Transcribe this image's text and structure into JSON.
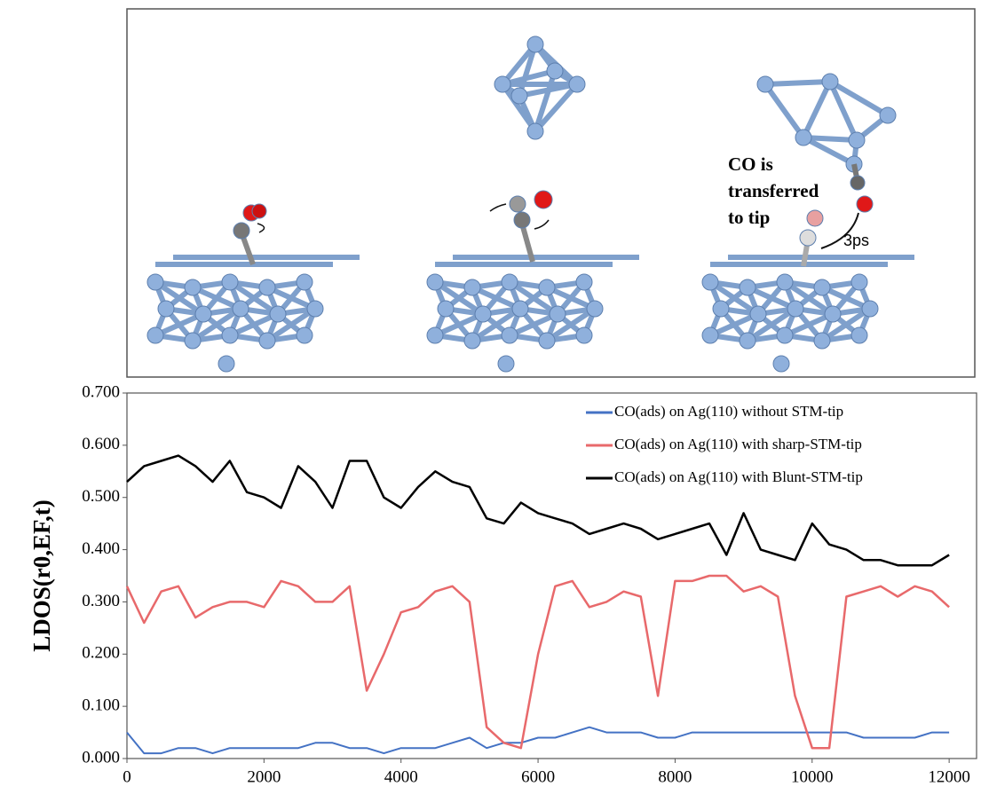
{
  "diagram": {
    "annotation_lines": [
      "CO is",
      "transferred",
      "to tip"
    ],
    "time_label": "3ps"
  },
  "chart_data": {
    "type": "line",
    "y_label": "LDOS(r0,EF,t)",
    "x": [
      0,
      250,
      500,
      750,
      1000,
      1250,
      1500,
      1750,
      2000,
      2250,
      2500,
      2750,
      3000,
      3250,
      3500,
      3750,
      4000,
      4250,
      4500,
      4750,
      5000,
      5250,
      5500,
      5750,
      6000,
      6250,
      6500,
      6750,
      7000,
      7250,
      7500,
      7750,
      8000,
      8250,
      8500,
      8750,
      9000,
      9250,
      9500,
      9750,
      10000,
      10250,
      10500,
      10750,
      11000,
      11250,
      11500,
      11750,
      12000
    ],
    "series": [
      {
        "name": "CO(ads) on Ag(110) without STM-tip",
        "color": "#4472c4",
        "values": [
          0.05,
          0.01,
          0.01,
          0.02,
          0.02,
          0.01,
          0.02,
          0.02,
          0.02,
          0.02,
          0.02,
          0.03,
          0.03,
          0.02,
          0.02,
          0.01,
          0.02,
          0.02,
          0.02,
          0.03,
          0.04,
          0.02,
          0.03,
          0.03,
          0.04,
          0.04,
          0.05,
          0.06,
          0.05,
          0.05,
          0.05,
          0.04,
          0.04,
          0.05,
          0.05,
          0.05,
          0.05,
          0.05,
          0.05,
          0.05,
          0.05,
          0.05,
          0.05,
          0.04,
          0.04,
          0.04,
          0.04,
          0.05,
          0.05
        ]
      },
      {
        "name": "CO(ads) on Ag(110) with sharp-STM-tip",
        "color": "#e8696b",
        "values": [
          0.33,
          0.26,
          0.32,
          0.33,
          0.27,
          0.29,
          0.3,
          0.3,
          0.29,
          0.34,
          0.33,
          0.3,
          0.3,
          0.33,
          0.13,
          0.2,
          0.28,
          0.29,
          0.32,
          0.33,
          0.3,
          0.06,
          0.03,
          0.02,
          0.2,
          0.33,
          0.34,
          0.29,
          0.3,
          0.32,
          0.31,
          0.12,
          0.34,
          0.34,
          0.35,
          0.35,
          0.32,
          0.33,
          0.31,
          0.12,
          0.02,
          0.02,
          0.31,
          0.32,
          0.33,
          0.31,
          0.33,
          0.32,
          0.29
        ]
      },
      {
        "name": "CO(ads) on Ag(110) with Blunt-STM-tip",
        "color": "#000000",
        "values": [
          0.53,
          0.56,
          0.57,
          0.58,
          0.56,
          0.53,
          0.57,
          0.51,
          0.5,
          0.48,
          0.56,
          0.53,
          0.48,
          0.57,
          0.57,
          0.5,
          0.48,
          0.52,
          0.55,
          0.53,
          0.52,
          0.46,
          0.45,
          0.49,
          0.47,
          0.46,
          0.45,
          0.43,
          0.44,
          0.45,
          0.44,
          0.42,
          0.43,
          0.44,
          0.45,
          0.39,
          0.47,
          0.4,
          0.39,
          0.38,
          0.45,
          0.41,
          0.4,
          0.38,
          0.38,
          0.37,
          0.37,
          0.37,
          0.39
        ]
      }
    ],
    "xlim": [
      0,
      12400
    ],
    "ylim": [
      0,
      0.7
    ],
    "xticks": [
      0,
      2000,
      4000,
      6000,
      8000,
      10000,
      12000
    ],
    "yticks": [
      {
        "value": 0,
        "label": "0.000"
      },
      {
        "value": 0.1,
        "label": "0.100"
      },
      {
        "value": 0.2,
        "label": "0.200"
      },
      {
        "value": 0.3,
        "label": "0.300"
      },
      {
        "value": 0.4,
        "label": "0.400"
      },
      {
        "value": 0.5,
        "label": "0.500"
      },
      {
        "value": 0.6,
        "label": "0.600"
      },
      {
        "value": 0.7,
        "label": "0.700"
      }
    ],
    "legend": "upper right"
  }
}
